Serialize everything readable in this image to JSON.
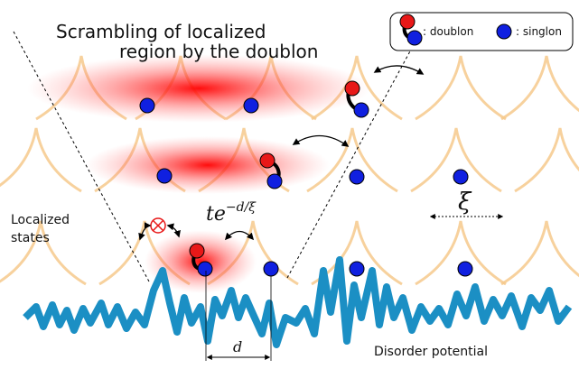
{
  "title": {
    "lines": [
      "Scrambling of localized",
      "region by the doublon"
    ]
  },
  "legend": {
    "doublon": ": doublon",
    "singlon": ": singlon"
  },
  "hopping": {
    "base": "te",
    "exponent": "−d/ξ"
  },
  "length_label": "ξ",
  "localized_label": {
    "lines": [
      "Localized",
      "states"
    ]
  },
  "distance_label": "d",
  "disorder_label": "Disorder potential"
}
